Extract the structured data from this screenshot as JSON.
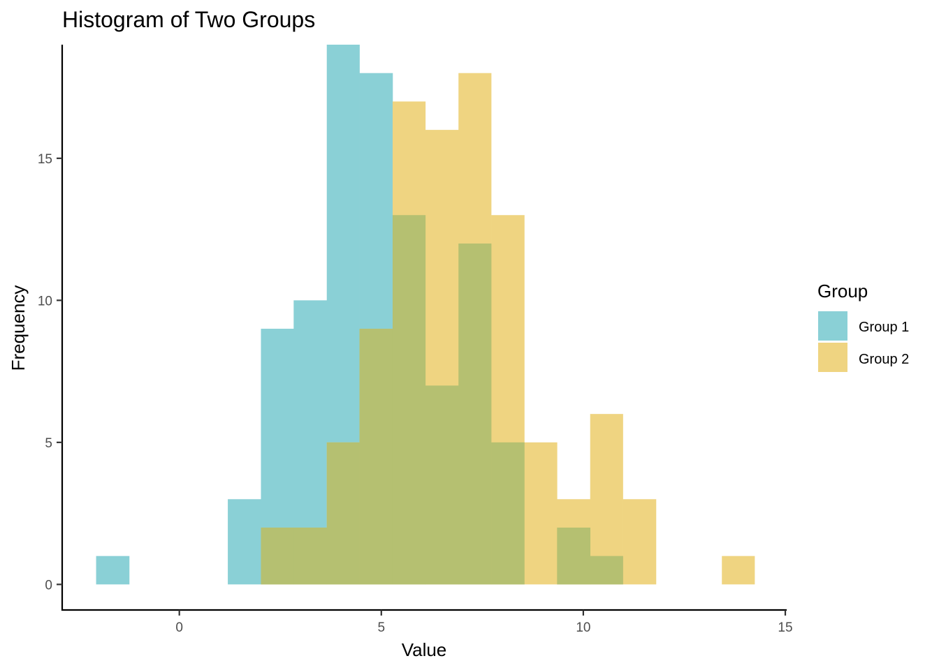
{
  "chart_data": {
    "type": "histogram",
    "title": "Histogram of Two Groups",
    "xlabel": "Value",
    "ylabel": "Frequency",
    "xlim": [
      -2.9,
      15.0
    ],
    "ylim": [
      -0.9,
      19.0
    ],
    "x_ticks": [
      0,
      5,
      10,
      15
    ],
    "y_ticks": [
      0,
      5,
      10,
      15
    ],
    "grid": false,
    "legend": {
      "title": "Group",
      "position": "right"
    },
    "bin_width": 0.815,
    "series": [
      {
        "name": "Group 1",
        "color": "#8ad0d6",
        "bins": [
          {
            "x0": -2.06,
            "x1": -1.24,
            "count": 1
          },
          {
            "x0": 1.2,
            "x1": 2.02,
            "count": 3
          },
          {
            "x0": 2.02,
            "x1": 2.83,
            "count": 9
          },
          {
            "x0": 2.83,
            "x1": 3.65,
            "count": 10
          },
          {
            "x0": 3.65,
            "x1": 4.46,
            "count": 19
          },
          {
            "x0": 4.46,
            "x1": 5.28,
            "count": 18
          },
          {
            "x0": 5.28,
            "x1": 6.09,
            "count": 13
          },
          {
            "x0": 6.09,
            "x1": 6.91,
            "count": 7
          },
          {
            "x0": 6.91,
            "x1": 7.72,
            "count": 12
          },
          {
            "x0": 7.72,
            "x1": 8.54,
            "count": 5
          },
          {
            "x0": 9.35,
            "x1": 10.17,
            "count": 2
          },
          {
            "x0": 10.17,
            "x1": 10.98,
            "count": 1
          }
        ]
      },
      {
        "name": "Group 2",
        "color": "#efd481",
        "bins": [
          {
            "x0": 2.02,
            "x1": 2.83,
            "count": 2
          },
          {
            "x0": 2.83,
            "x1": 3.65,
            "count": 2
          },
          {
            "x0": 3.65,
            "x1": 4.46,
            "count": 5
          },
          {
            "x0": 4.46,
            "x1": 5.28,
            "count": 9
          },
          {
            "x0": 5.28,
            "x1": 6.09,
            "count": 17
          },
          {
            "x0": 6.09,
            "x1": 6.91,
            "count": 16
          },
          {
            "x0": 6.91,
            "x1": 7.72,
            "count": 18
          },
          {
            "x0": 7.72,
            "x1": 8.54,
            "count": 13
          },
          {
            "x0": 8.54,
            "x1": 9.35,
            "count": 5
          },
          {
            "x0": 9.35,
            "x1": 10.17,
            "count": 3
          },
          {
            "x0": 10.17,
            "x1": 10.98,
            "count": 6
          },
          {
            "x0": 10.98,
            "x1": 11.8,
            "count": 3
          },
          {
            "x0": 13.43,
            "x1": 14.24,
            "count": 1
          }
        ]
      }
    ],
    "overlap_color": "#b5c071"
  }
}
